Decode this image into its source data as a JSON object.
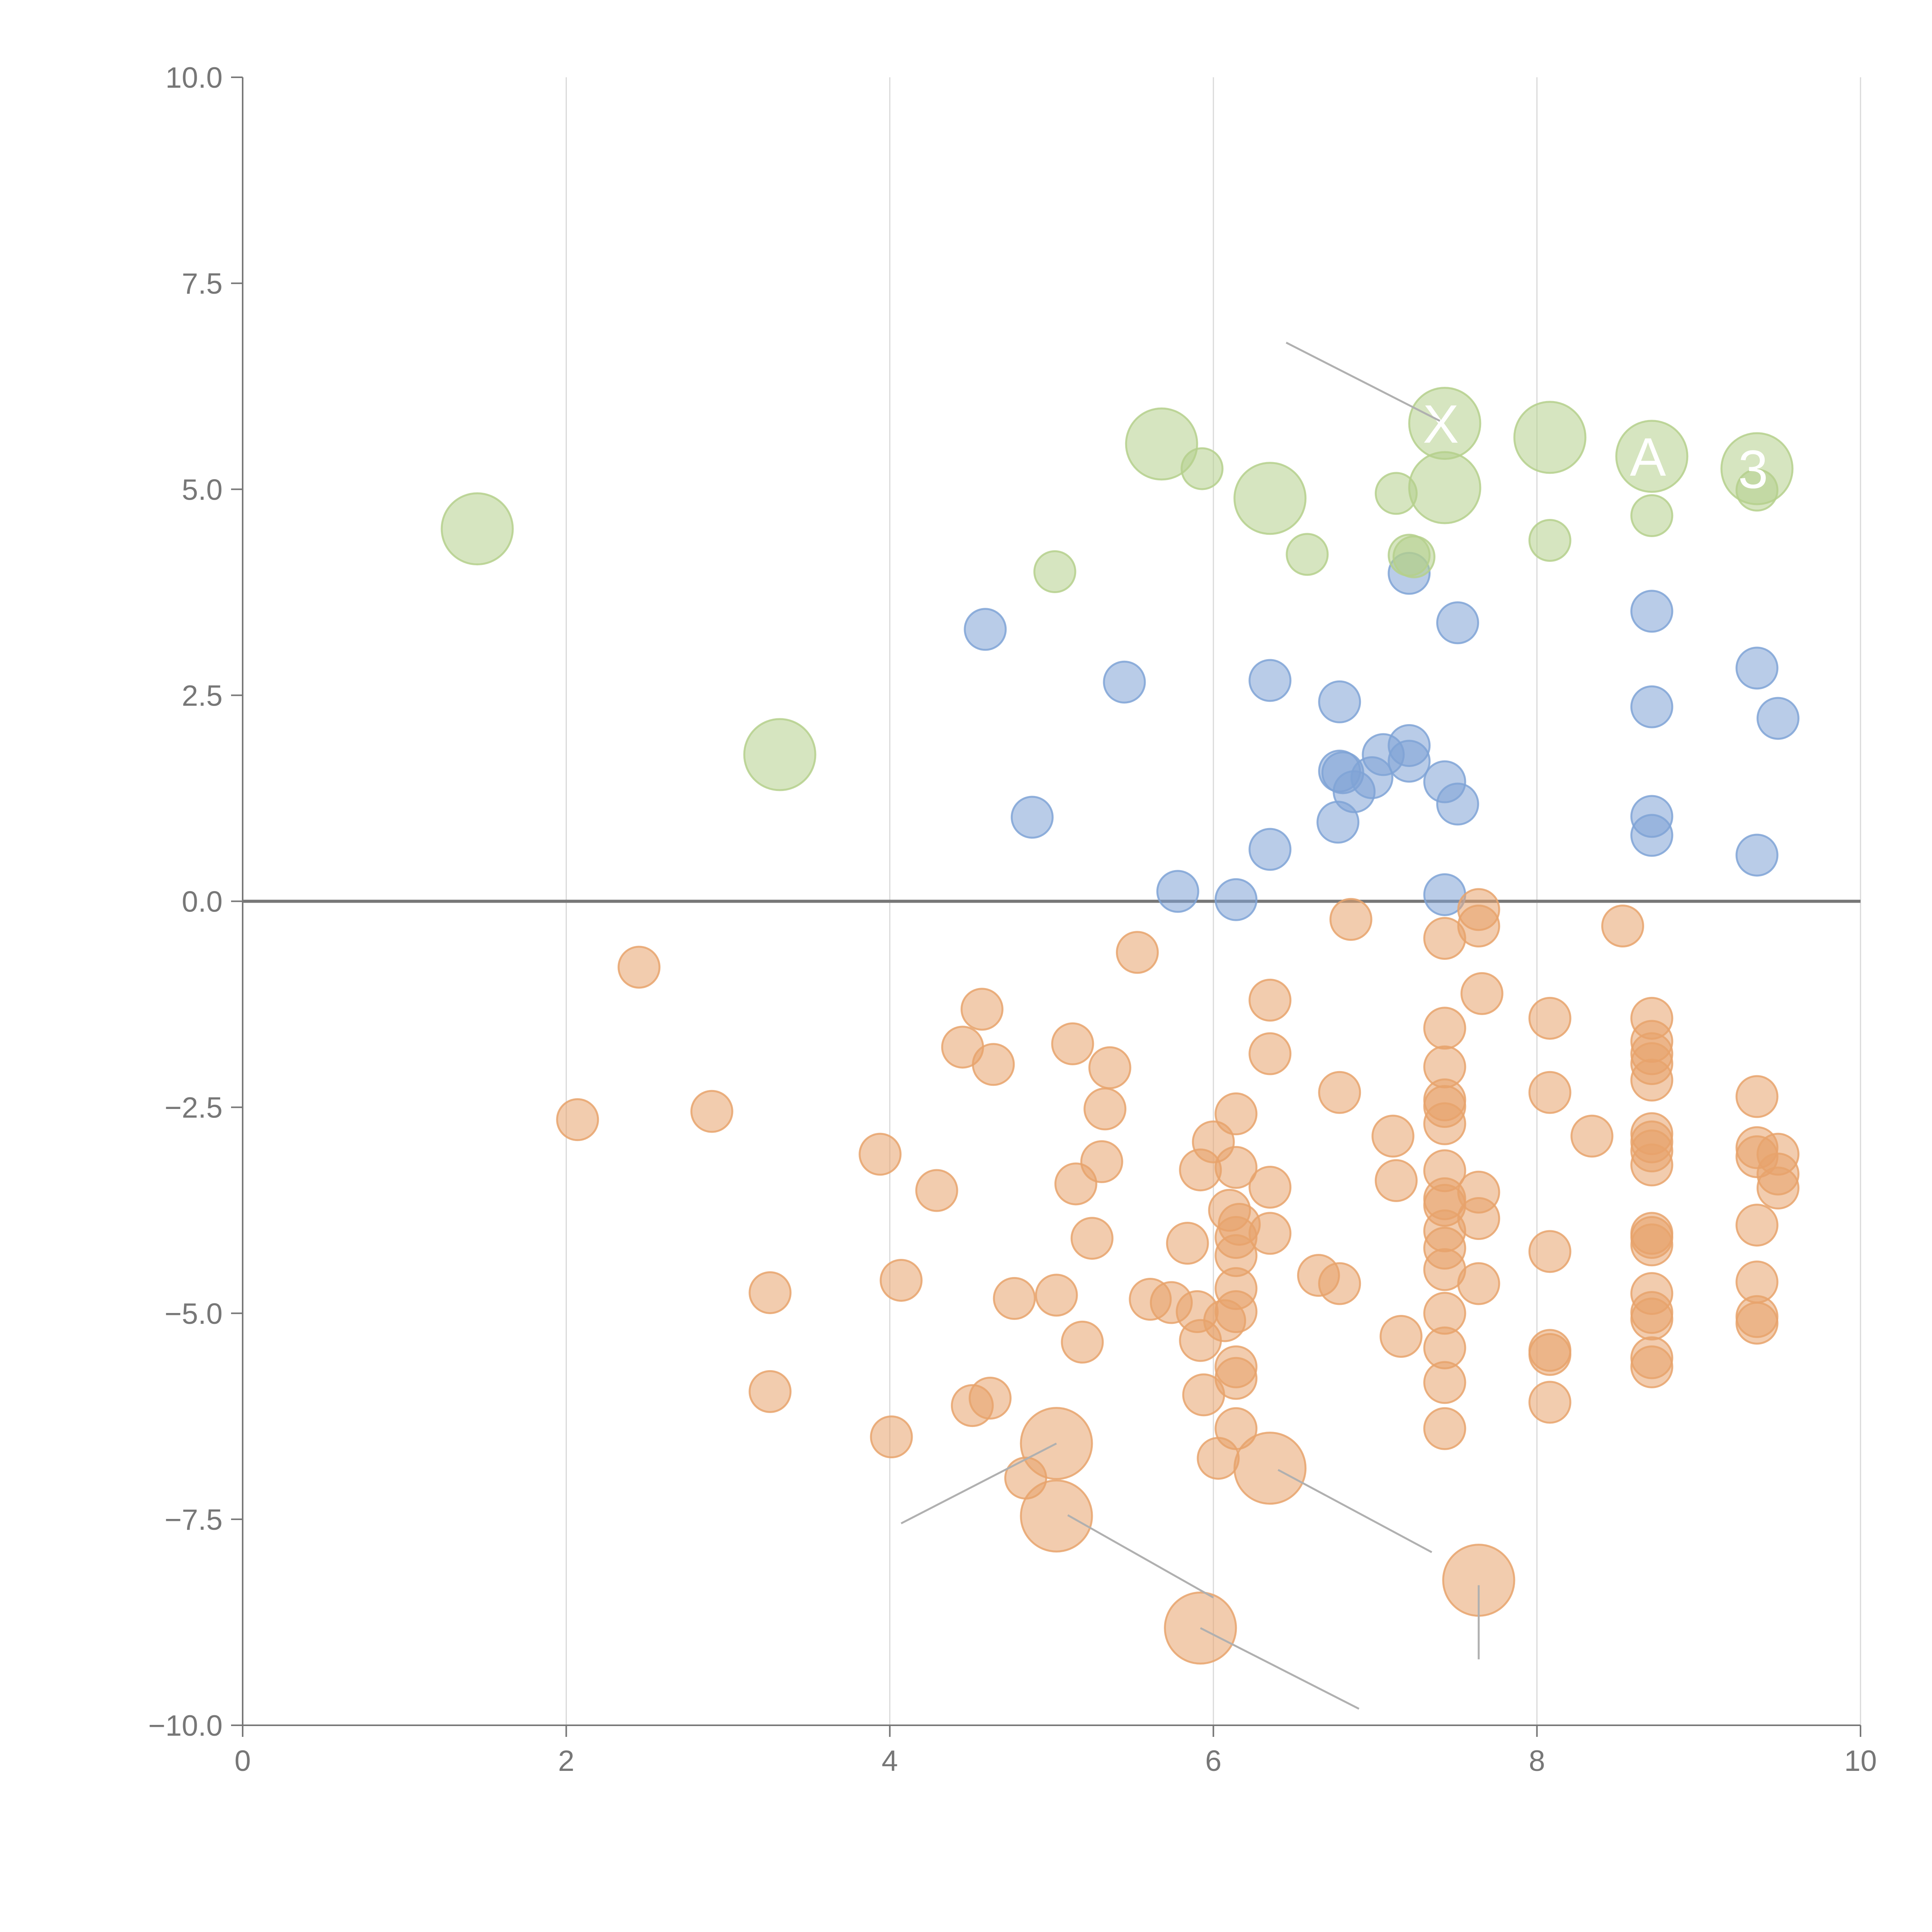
{
  "chart_data": {
    "type": "scatter",
    "title": "",
    "xlabel": "",
    "ylabel": "",
    "xlim": [
      0,
      10
    ],
    "ylim": [
      -10,
      10
    ],
    "x_ticks": [
      "0",
      "2",
      "4",
      "6",
      "8",
      "10"
    ],
    "y_ticks": [
      "10.0",
      "7.5",
      "5.0",
      "2.5",
      "0.0",
      "−2.5",
      "−5.0",
      "−7.5",
      "−10.0"
    ],
    "x_tick_values": [
      0,
      2,
      4,
      6,
      8,
      10
    ],
    "y_tick_values": [
      10,
      7.5,
      5,
      2.5,
      0,
      -2.5,
      -5,
      -7.5,
      -10
    ],
    "grid": "vertical",
    "colors": {
      "green": "#b5d08c",
      "blue": "#7fa3d6",
      "orange": "#e8a36c"
    },
    "series": [
      {
        "color": "blue",
        "points": [
          [
            4.59,
            3.3
          ],
          [
            5.45,
            2.66
          ],
          [
            4.88,
            1.02
          ],
          [
            6.35,
            2.68
          ],
          [
            6.78,
            2.42
          ],
          [
            6.78,
            1.58
          ],
          [
            6.8,
            1.56
          ],
          [
            6.87,
            1.33
          ],
          [
            6.98,
            1.5
          ],
          [
            7.05,
            1.78
          ],
          [
            7.21,
            1.89
          ],
          [
            7.21,
            1.7
          ],
          [
            7.43,
            1.45
          ],
          [
            7.51,
            1.18
          ],
          [
            6.77,
            0.96
          ],
          [
            6.35,
            0.63
          ],
          [
            5.78,
            0.12
          ],
          [
            6.14,
            0.02
          ],
          [
            7.43,
            0.08
          ],
          [
            7.21,
            3.98
          ],
          [
            7.51,
            3.38
          ],
          [
            8.71,
            3.52
          ],
          [
            8.71,
            2.36
          ],
          [
            8.71,
            1.03
          ],
          [
            8.71,
            0.8
          ],
          [
            9.36,
            2.83
          ],
          [
            9.49,
            2.22
          ],
          [
            9.36,
            0.56
          ]
        ]
      },
      {
        "color": "orange",
        "points": [
          [
            2.45,
            -0.8
          ],
          [
            2.07,
            -2.65
          ],
          [
            2.9,
            -2.55
          ],
          [
            3.26,
            -4.75
          ],
          [
            3.26,
            -5.95
          ],
          [
            3.94,
            -3.07
          ],
          [
            4.29,
            -3.51
          ],
          [
            4.07,
            -4.6
          ],
          [
            4.01,
            -6.5
          ],
          [
            4.45,
            -1.77
          ],
          [
            4.57,
            -1.31
          ],
          [
            4.64,
            -1.98
          ],
          [
            4.51,
            -6.12
          ],
          [
            4.62,
            -6.03
          ],
          [
            4.77,
            -4.82
          ],
          [
            4.84,
            -7.0
          ],
          [
            5.03,
            -4.78
          ],
          [
            5.19,
            -5.35
          ],
          [
            5.15,
            -3.43
          ],
          [
            5.13,
            -1.73
          ],
          [
            5.36,
            -2.02
          ],
          [
            5.33,
            -2.52
          ],
          [
            5.31,
            -3.16
          ],
          [
            5.25,
            -4.09
          ],
          [
            5.53,
            -0.62
          ],
          [
            5.61,
            -4.83
          ],
          [
            5.74,
            -4.87
          ],
          [
            5.9,
            -4.98
          ],
          [
            5.92,
            -5.33
          ],
          [
            5.84,
            -4.15
          ],
          [
            5.92,
            -3.26
          ],
          [
            6.0,
            -2.92
          ],
          [
            6.14,
            -2.58
          ],
          [
            6.14,
            -3.23
          ],
          [
            6.1,
            -3.75
          ],
          [
            6.16,
            -3.92
          ],
          [
            6.14,
            -4.08
          ],
          [
            6.14,
            -4.3
          ],
          [
            6.14,
            -4.7
          ],
          [
            6.14,
            -4.98
          ],
          [
            6.07,
            -5.09
          ],
          [
            6.14,
            -5.65
          ],
          [
            6.14,
            -5.79
          ],
          [
            5.94,
            -5.99
          ],
          [
            6.14,
            -6.4
          ],
          [
            6.03,
            -6.76
          ],
          [
            6.35,
            -1.2
          ],
          [
            6.35,
            -1.85
          ],
          [
            6.35,
            -3.47
          ],
          [
            6.35,
            -4.03
          ],
          [
            6.65,
            -4.54
          ],
          [
            6.78,
            -4.64
          ],
          [
            6.78,
            -2.32
          ],
          [
            6.85,
            -0.22
          ],
          [
            7.11,
            -2.85
          ],
          [
            7.13,
            -3.39
          ],
          [
            7.16,
            -5.28
          ],
          [
            7.43,
            -0.45
          ],
          [
            7.43,
            -1.54
          ],
          [
            7.43,
            -2.01
          ],
          [
            7.43,
            -2.41
          ],
          [
            7.43,
            -2.49
          ],
          [
            7.43,
            -2.7
          ],
          [
            7.43,
            -3.27
          ],
          [
            7.43,
            -3.61
          ],
          [
            7.43,
            -3.69
          ],
          [
            7.43,
            -4.0
          ],
          [
            7.43,
            -4.21
          ],
          [
            7.43,
            -4.47
          ],
          [
            7.43,
            -5.0
          ],
          [
            7.43,
            -5.42
          ],
          [
            7.43,
            -5.84
          ],
          [
            7.43,
            -6.4
          ],
          [
            7.64,
            -0.1
          ],
          [
            7.64,
            -0.3
          ],
          [
            7.66,
            -1.12
          ],
          [
            7.64,
            -3.53
          ],
          [
            7.64,
            -3.85
          ],
          [
            7.64,
            -4.64
          ],
          [
            8.08,
            -1.42
          ],
          [
            8.08,
            -2.32
          ],
          [
            8.08,
            -4.25
          ],
          [
            8.08,
            -5.45
          ],
          [
            8.08,
            -5.5
          ],
          [
            8.08,
            -6.08
          ],
          [
            8.34,
            -2.85
          ],
          [
            8.53,
            -0.3
          ],
          [
            8.71,
            -1.42
          ],
          [
            8.71,
            -1.7
          ],
          [
            8.71,
            -1.85
          ],
          [
            8.71,
            -1.97
          ],
          [
            8.71,
            -2.17
          ],
          [
            8.71,
            -2.82
          ],
          [
            8.71,
            -2.92
          ],
          [
            8.71,
            -3.03
          ],
          [
            8.71,
            -3.2
          ],
          [
            8.71,
            -4.03
          ],
          [
            8.71,
            -4.08
          ],
          [
            8.71,
            -4.17
          ],
          [
            8.71,
            -4.76
          ],
          [
            8.71,
            -4.99
          ],
          [
            8.71,
            -5.07
          ],
          [
            8.71,
            -5.54
          ],
          [
            8.71,
            -5.65
          ],
          [
            9.36,
            -2.37
          ],
          [
            9.36,
            -2.99
          ],
          [
            9.36,
            -3.1
          ],
          [
            9.36,
            -3.93
          ],
          [
            9.36,
            -4.62
          ],
          [
            9.36,
            -5.04
          ],
          [
            9.36,
            -5.12
          ],
          [
            9.49,
            -3.07
          ],
          [
            9.49,
            -3.31
          ],
          [
            9.49,
            -3.48
          ]
        ]
      },
      {
        "color": "green",
        "points": [
          [
            5.93,
            5.25
          ],
          [
            5.02,
            4.0
          ],
          [
            6.58,
            4.21
          ],
          [
            7.13,
            4.95
          ],
          [
            7.21,
            4.2
          ],
          [
            7.24,
            4.18
          ],
          [
            8.08,
            4.38
          ],
          [
            8.71,
            4.68
          ],
          [
            9.36,
            4.99
          ]
        ]
      }
    ],
    "labeled_points": [
      {
        "text": "X",
        "color": "green",
        "x": 7.43,
        "y": 5.8
      },
      {
        "text": "A",
        "color": "green",
        "x": 8.71,
        "y": 5.4
      },
      {
        "text": "3",
        "color": "green",
        "x": 9.36,
        "y": 5.25
      },
      {
        "text": "",
        "color": "green",
        "x": 1.45,
        "y": 4.52
      },
      {
        "text": "",
        "color": "green",
        "x": 3.32,
        "y": 1.78
      },
      {
        "text": "",
        "color": "green",
        "x": 5.68,
        "y": 5.55
      },
      {
        "text": "",
        "color": "green",
        "x": 6.35,
        "y": 4.89
      },
      {
        "text": "",
        "color": "green",
        "x": 7.43,
        "y": 5.02
      },
      {
        "text": "",
        "color": "green",
        "x": 8.08,
        "y": 5.63
      },
      {
        "text": "",
        "color": "orange",
        "x": 5.03,
        "y": -6.58
      },
      {
        "text": "",
        "color": "orange",
        "x": 5.03,
        "y": -7.46
      },
      {
        "text": "",
        "color": "orange",
        "x": 6.35,
        "y": -6.88
      },
      {
        "text": "",
        "color": "orange",
        "x": 7.64,
        "y": -8.24
      },
      {
        "text": "",
        "color": "orange",
        "x": 5.92,
        "y": -8.82
      }
    ]
  }
}
